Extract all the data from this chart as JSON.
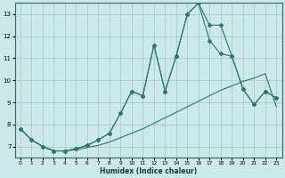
{
  "xlabel": "Humidex (Indice chaleur)",
  "background_color": "#cce8e8",
  "grid_color": "#aacccc",
  "line_color": "#2a7a6a",
  "xlim": [
    -0.5,
    23.5
  ],
  "ylim": [
    6.5,
    13.5
  ],
  "xticks": [
    0,
    1,
    2,
    3,
    4,
    5,
    6,
    7,
    8,
    9,
    10,
    11,
    12,
    13,
    14,
    15,
    16,
    17,
    18,
    19,
    20,
    21,
    22,
    23
  ],
  "yticks": [
    7,
    8,
    9,
    10,
    11,
    12,
    13
  ],
  "line1_x": [
    0,
    1,
    2,
    3,
    4,
    5,
    6,
    7,
    8,
    9,
    10,
    11,
    12,
    13,
    14,
    15,
    16,
    17,
    18,
    19,
    20,
    21,
    22,
    23
  ],
  "line1_y": [
    7.8,
    7.3,
    7.0,
    6.8,
    6.8,
    6.85,
    6.95,
    7.05,
    7.2,
    7.4,
    7.6,
    7.8,
    8.05,
    8.3,
    8.55,
    8.8,
    9.05,
    9.3,
    9.55,
    9.75,
    9.95,
    10.1,
    10.3,
    8.8
  ],
  "line2_x": [
    0,
    1,
    2,
    3,
    4,
    5,
    6,
    7,
    8,
    9,
    10,
    11,
    12,
    13,
    14,
    15,
    16,
    17,
    18,
    19,
    20,
    21,
    22,
    23
  ],
  "line2_y": [
    7.8,
    7.3,
    7.0,
    6.8,
    6.8,
    6.9,
    7.05,
    7.3,
    7.6,
    8.5,
    9.5,
    9.3,
    11.6,
    9.5,
    11.1,
    13.0,
    13.5,
    11.8,
    11.2,
    11.1,
    9.6,
    8.9,
    9.5,
    9.2
  ],
  "line3_x": [
    0,
    1,
    2,
    3,
    4,
    5,
    6,
    7,
    8,
    9,
    10,
    11,
    12,
    13,
    14,
    15,
    16,
    17,
    18,
    19,
    20,
    21,
    22,
    23
  ],
  "line3_y": [
    7.8,
    7.3,
    7.0,
    6.8,
    6.8,
    6.9,
    7.05,
    7.3,
    7.6,
    8.5,
    9.5,
    9.3,
    11.6,
    9.5,
    11.1,
    13.0,
    13.5,
    12.5,
    12.5,
    11.1,
    9.6,
    8.9,
    9.5,
    9.2
  ]
}
